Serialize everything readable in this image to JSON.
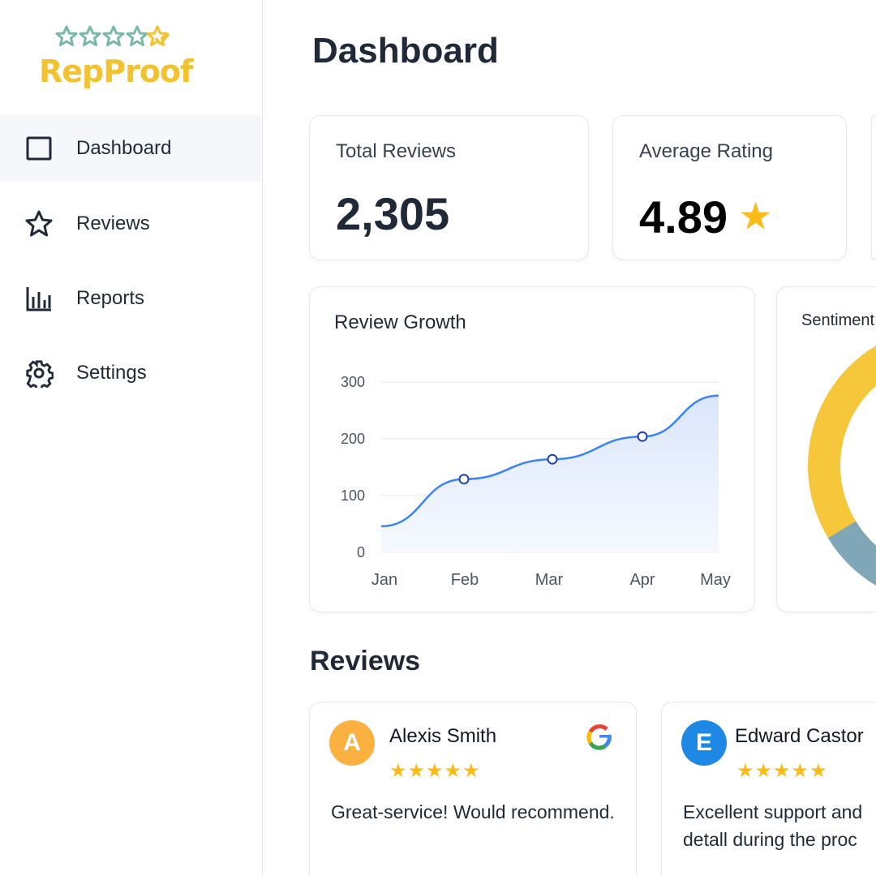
{
  "brand": {
    "name": "RepProof",
    "colors": {
      "teal": "#79b8a8",
      "gold": "#f2c231"
    }
  },
  "sidebar": {
    "items": [
      {
        "label": "Dashboard",
        "icon": "square-icon",
        "active": true
      },
      {
        "label": "Reviews",
        "icon": "star-icon"
      },
      {
        "label": "Reports",
        "icon": "bar-chart-icon"
      },
      {
        "label": "Settings",
        "icon": "gear-icon"
      }
    ]
  },
  "page": {
    "title": "Dashboard"
  },
  "stats": [
    {
      "label": "Total Reviews",
      "value": "2,305"
    },
    {
      "label": "Average Rating",
      "value": "4.89",
      "icon": "star-icon"
    }
  ],
  "growth": {
    "title": "Review Growth"
  },
  "sentiment": {
    "title": "Sentiment",
    "colors": [
      "#f6c73a",
      "#7fa7b8"
    ]
  },
  "chart_data": {
    "type": "area",
    "title": "Review Growth",
    "categories": [
      "Jan",
      "Feb",
      "Mar",
      "Apr",
      "May"
    ],
    "values": [
      46,
      129,
      164,
      204,
      276
    ],
    "markers": [
      "Feb",
      "Mar",
      "Apr"
    ],
    "yticks": [
      "0",
      "100",
      "200",
      "300"
    ],
    "ylim": [
      0,
      300
    ],
    "grid": true,
    "color": "#3b82f6"
  },
  "reviews": {
    "title": "Reviews",
    "items": [
      {
        "initial": "A",
        "name": "Alexis Smith",
        "stars": "★★★★★",
        "text": "Great-service! Would recommend.",
        "source": "google-icon",
        "color": "#fbb040"
      },
      {
        "initial": "E",
        "name": "Edward Castor",
        "stars": "★★★★★",
        "text": "Excellent support and detall during the proc",
        "color": "#1e88e5"
      }
    ]
  }
}
